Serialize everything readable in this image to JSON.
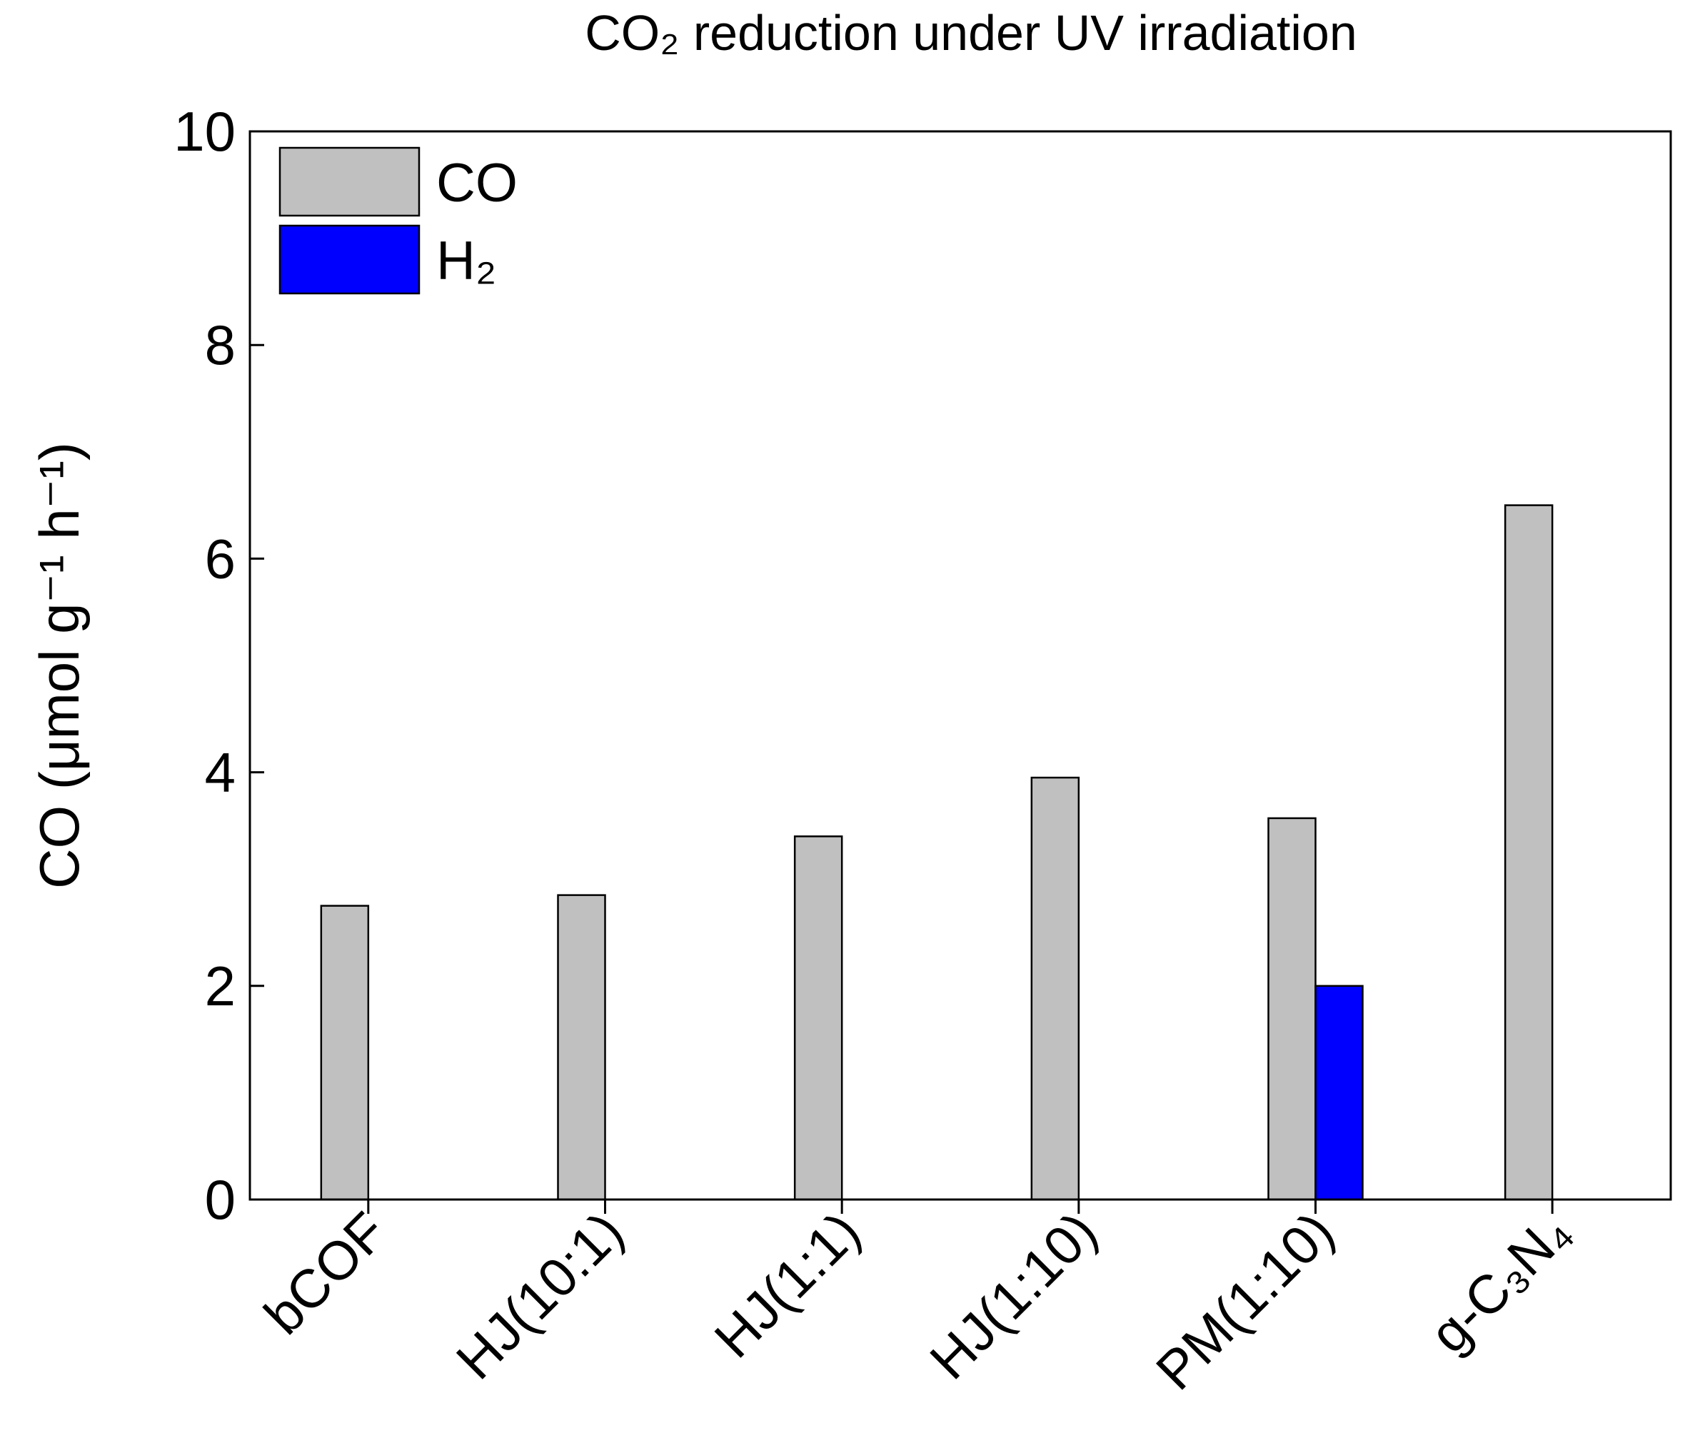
{
  "chart_data": {
    "type": "bar",
    "title": "CO₂ reduction under UV irradiation",
    "y_label": "CO (μmol g⁻¹ h⁻¹)",
    "categories": [
      "bCOF",
      "HJ(10:1)",
      "HJ(1:1)",
      "HJ(1:10)",
      "PM(1:10)",
      "g-C₃N₄"
    ],
    "series": [
      {
        "name": "CO",
        "color": "#c0c0c0",
        "values": [
          2.75,
          2.85,
          3.4,
          3.95,
          3.57,
          6.5
        ]
      },
      {
        "name": "H₂",
        "color": "#0000ff",
        "values": [
          null,
          null,
          null,
          null,
          2.0,
          null
        ]
      }
    ],
    "ylim": [
      0,
      10
    ],
    "yticks": [
      0,
      2,
      4,
      6,
      8,
      10
    ],
    "legend": "upper left"
  }
}
